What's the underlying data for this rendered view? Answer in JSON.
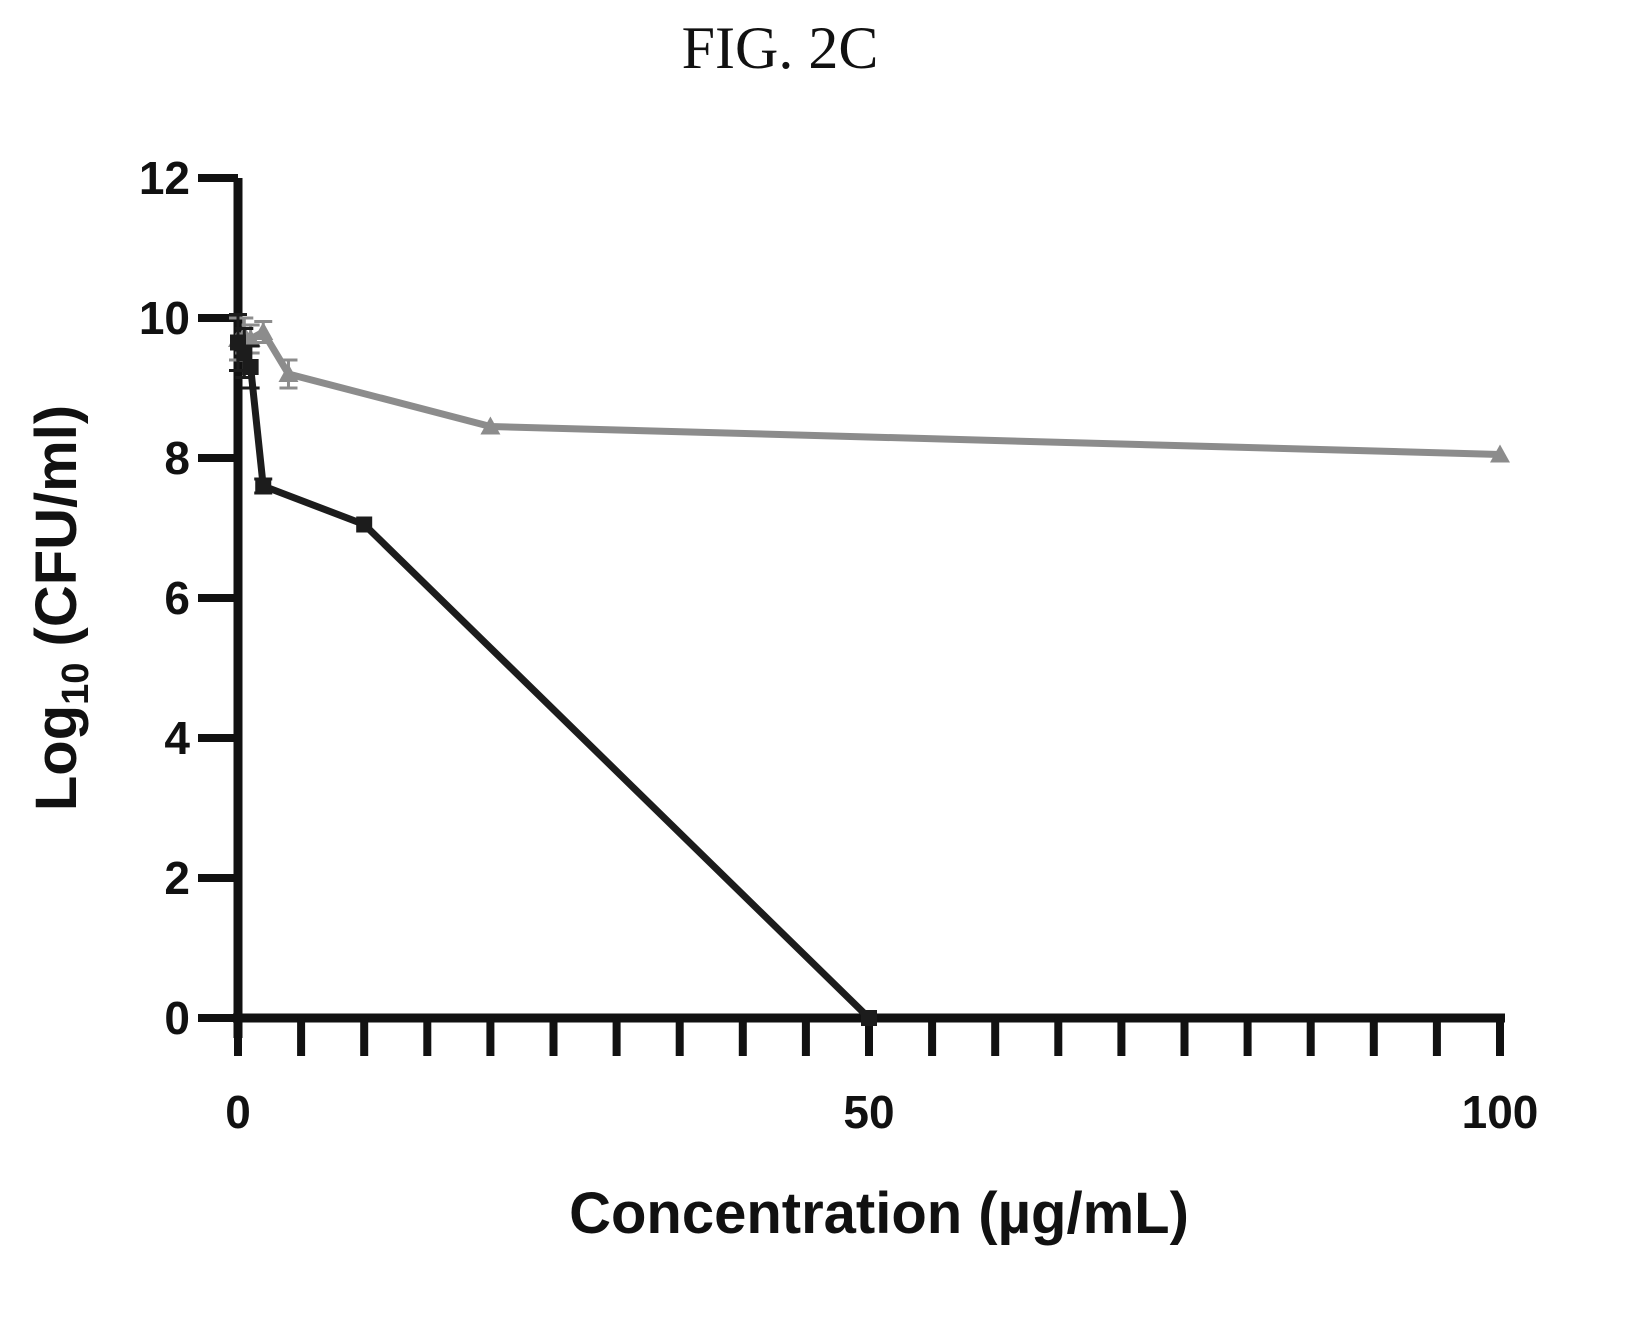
{
  "figure_label": "FIG. 2C",
  "chart_data": {
    "type": "line",
    "title": "FIG. 2C",
    "xlabel": "Concentration (µg/mL)",
    "ylabel": {
      "prefix": "Log",
      "subscript": "10",
      "suffix": " (CFU/ml)"
    },
    "xlim": [
      0,
      100
    ],
    "ylim": [
      0,
      12
    ],
    "xticks": [
      0,
      50,
      100
    ],
    "yticks": [
      0,
      2,
      4,
      6,
      8,
      10,
      12
    ],
    "x_minor_tick_step": 5,
    "grid": false,
    "legend": "none",
    "series": [
      {
        "color": "#8c8c8c",
        "marker": "triangle",
        "x": [
          0,
          0.5,
          1,
          2,
          4,
          20,
          100
        ],
        "y": [
          9.7,
          9.75,
          9.7,
          9.8,
          9.2,
          8.45,
          8.05
        ],
        "error": [
          0.3,
          0.25,
          0.2,
          0.15,
          0.2,
          0.05,
          0.05
        ]
      },
      {
        "color": "#1c1c1c",
        "marker": "square",
        "x": [
          0,
          0.5,
          1,
          2,
          10,
          50
        ],
        "y": [
          9.65,
          9.5,
          9.3,
          7.6,
          7.05,
          0
        ],
        "error": [
          0.4,
          0.35,
          0.3,
          0.1,
          0.05,
          0
        ]
      }
    ]
  }
}
